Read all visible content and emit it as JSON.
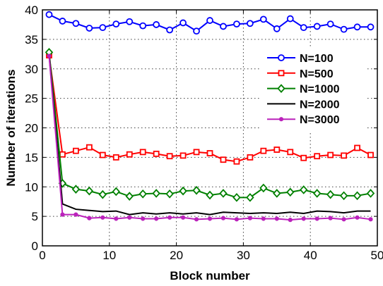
{
  "chart_data": {
    "type": "line",
    "title": "",
    "xlabel": "Block number",
    "ylabel": "Number of iterations",
    "xlim": [
      0,
      50
    ],
    "ylim": [
      0,
      40
    ],
    "xticks": [
      0,
      10,
      20,
      30,
      40,
      50
    ],
    "yticks": [
      0,
      5,
      10,
      15,
      20,
      25,
      30,
      35,
      40
    ],
    "grid": true,
    "legend_position": "right",
    "x": [
      1,
      3,
      5,
      7,
      9,
      11,
      13,
      15,
      17,
      19,
      21,
      23,
      25,
      27,
      29,
      31,
      33,
      35,
      37,
      39,
      41,
      43,
      45,
      47,
      49
    ],
    "series": [
      {
        "name": "N=100",
        "color": "#0000ff",
        "marker": "circle",
        "values": [
          39.2,
          38.1,
          37.7,
          36.9,
          37.0,
          37.6,
          38.0,
          37.3,
          37.5,
          36.6,
          37.8,
          36.4,
          38.2,
          37.2,
          37.6,
          37.7,
          38.4,
          36.8,
          38.5,
          37.0,
          37.2,
          37.6,
          36.7,
          37.1,
          37.1
        ]
      },
      {
        "name": "N=500",
        "color": "#ff0000",
        "marker": "square",
        "values": [
          32.3,
          15.5,
          16.1,
          16.7,
          15.4,
          15.0,
          15.5,
          15.9,
          15.6,
          15.2,
          15.3,
          15.9,
          15.7,
          14.6,
          14.3,
          15.0,
          16.1,
          16.3,
          15.9,
          14.9,
          15.2,
          15.4,
          15.3,
          16.6,
          15.4
        ]
      },
      {
        "name": "N=1000",
        "color": "#008000",
        "marker": "diamond",
        "values": [
          32.8,
          10.6,
          9.6,
          9.3,
          8.7,
          9.2,
          8.4,
          8.8,
          8.9,
          8.8,
          9.3,
          9.4,
          8.6,
          8.9,
          8.2,
          8.2,
          9.8,
          8.9,
          9.1,
          9.5,
          8.9,
          8.7,
          8.5,
          8.5,
          8.9
        ]
      },
      {
        "name": "N=2000",
        "color": "#000000",
        "marker": "none",
        "values": [
          32.4,
          7.1,
          6.2,
          6.0,
          5.8,
          5.9,
          5.3,
          5.6,
          5.4,
          5.6,
          5.4,
          5.6,
          5.3,
          5.7,
          5.6,
          5.5,
          5.6,
          5.5,
          5.7,
          5.5,
          5.9,
          5.8,
          5.6,
          5.9,
          5.9
        ]
      },
      {
        "name": "N=3000",
        "color": "#bb22bb",
        "marker": "dot",
        "values": [
          32.2,
          5.3,
          5.3,
          4.7,
          4.8,
          4.6,
          4.8,
          4.6,
          4.6,
          4.8,
          4.8,
          4.5,
          4.6,
          4.7,
          4.5,
          4.7,
          4.6,
          4.6,
          4.4,
          4.6,
          4.6,
          4.7,
          4.5,
          4.8,
          4.5
        ]
      }
    ]
  }
}
